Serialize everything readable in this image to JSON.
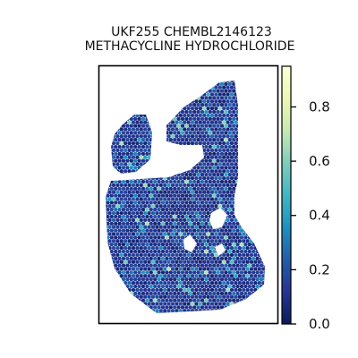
{
  "chart_data": {
    "type": "heatmap",
    "title": [
      "UKF255 CHEMBL2146123",
      "METHACYCLINE HYDROCHLORIDE"
    ],
    "xlabel": "",
    "ylabel": "",
    "colorbar": {
      "colormap": "YlGnBu",
      "range": [
        0.0,
        0.95
      ],
      "ticks": [
        0.0,
        0.2,
        0.4,
        0.6,
        0.8
      ],
      "tick_labels": [
        "0.0",
        "0.2",
        "0.4",
        "0.6",
        "0.8"
      ],
      "stops": [
        "#081d58",
        "#253494",
        "#225ea8",
        "#1d91c0",
        "#41b6c4",
        "#7fcdbb",
        "#c7e9b4",
        "#edf8b1",
        "#ffffd9"
      ]
    },
    "spot_value_summary": {
      "typical": 0.15,
      "max": 0.7
    },
    "grid": false,
    "legend": "colorbar-right"
  }
}
